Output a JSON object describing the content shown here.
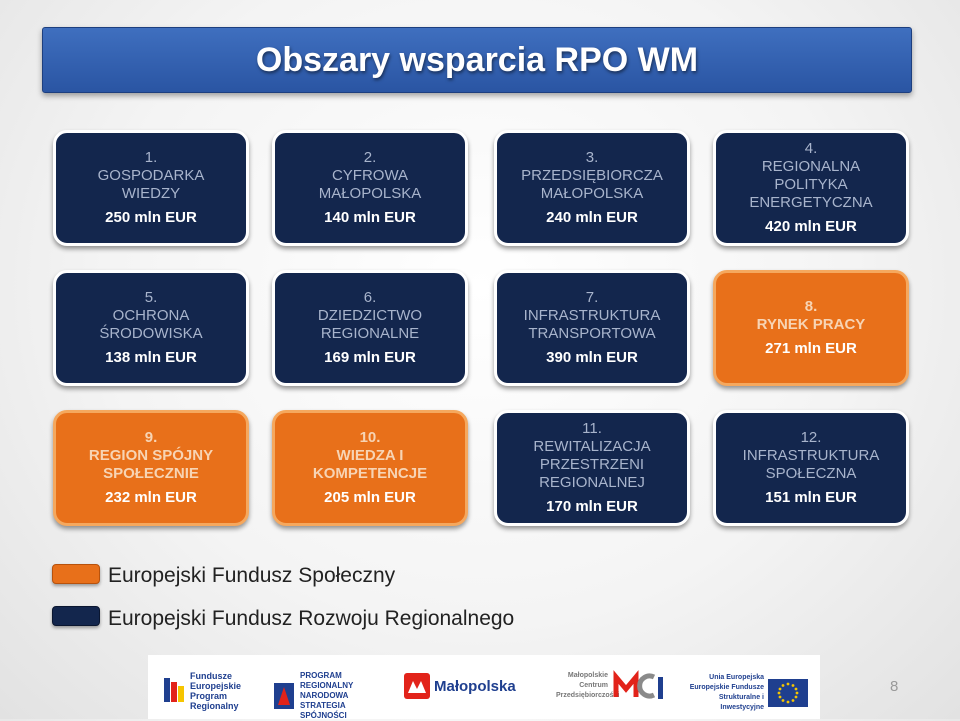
{
  "title": "Obszary wsparcia RPO WM",
  "colors": {
    "dark": "#13264d",
    "orange": "#e8701a"
  },
  "tiles": [
    {
      "num": "1.",
      "name": "GOSPODARKA WIEDZY",
      "amount": "250 mln EUR",
      "fund": "EFRR"
    },
    {
      "num": "2.",
      "name": "CYFROWA MAŁOPOLSKA",
      "amount": "140 mln EUR",
      "fund": "EFRR"
    },
    {
      "num": "3.",
      "name": "PRZEDSIĘBIORCZA MAŁOPOLSKA",
      "amount": "240 mln EUR",
      "fund": "EFRR"
    },
    {
      "num": "4.",
      "name": "REGIONALNA POLITYKA ENERGETYCZNA",
      "amount": "420 mln EUR",
      "fund": "EFRR"
    },
    {
      "num": "5.",
      "name": "OCHRONA ŚRODOWISKA",
      "amount": "138 mln EUR",
      "fund": "EFRR"
    },
    {
      "num": "6.",
      "name": "DZIEDZICTWO REGIONALNE",
      "amount": "169 mln EUR",
      "fund": "EFRR"
    },
    {
      "num": "7.",
      "name": "INFRASTRUKTURA TRANSPORTOWA",
      "amount": "390 mln EUR",
      "fund": "EFRR"
    },
    {
      "num": "8.",
      "name": "RYNEK PRACY",
      "amount": "271 mln EUR",
      "fund": "EFS"
    },
    {
      "num": "9.",
      "name": "REGION SPÓJNY SPOŁECZNIE",
      "amount": "232 mln EUR",
      "fund": "EFS"
    },
    {
      "num": "10.",
      "name": "WIEDZA I KOMPETENCJE",
      "amount": "205 mln EUR",
      "fund": "EFS"
    },
    {
      "num": "11.",
      "name": "REWITALIZACJA PRZESTRZENI REGIONALNEJ",
      "amount": "170 mln EUR",
      "fund": "EFRR"
    },
    {
      "num": "12.",
      "name": "INFRASTRUKTURA SPOŁECZNA",
      "amount": "151 mln EUR",
      "fund": "EFRR"
    }
  ],
  "legend": {
    "efs": "Europejski Fundusz Społeczny",
    "efrr": "Europejski Fundusz Rozwoju Regionalnego"
  },
  "footer": {
    "logo1": "Fundusze Europejskie Program Regionalny",
    "logo2": "PROGRAM REGIONALNY NARODOWA STRATEGIA SPÓJNOŚCI",
    "logo3": "Małopolska",
    "logo4": "Małopolskie Centrum Przedsiębiorczości",
    "logo5": "Unia Europejska Europejskie Fundusze Strukturalne i Inwestycyjne"
  },
  "page_number": "8"
}
